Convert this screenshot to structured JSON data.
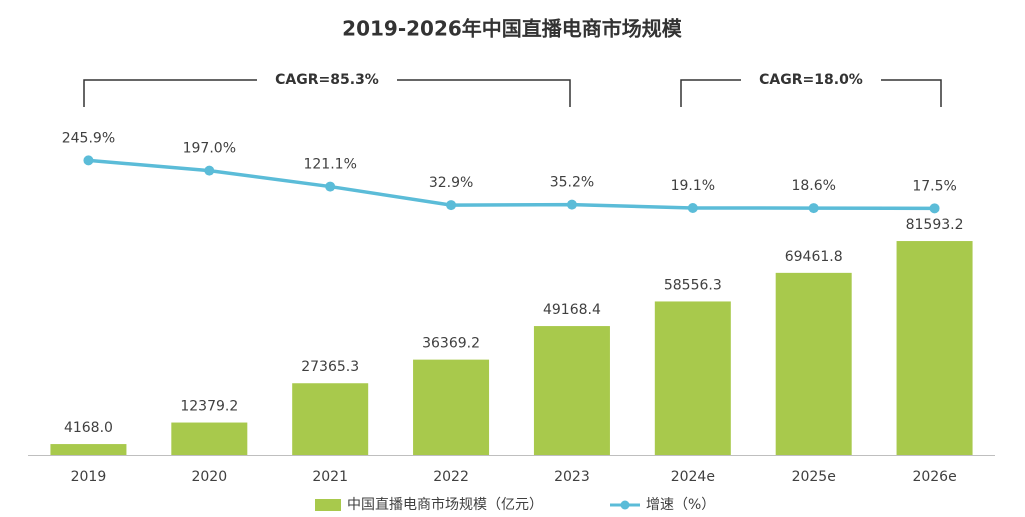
{
  "chart_data": {
    "type": "combo",
    "title": "2019-2026年中国直播电商市场规模",
    "categories": [
      "2019",
      "2020",
      "2021",
      "2022",
      "2023",
      "2024e",
      "2025e",
      "2026e"
    ],
    "series": [
      {
        "name": "中国直播电商市场规模（亿元）",
        "type": "bar",
        "color": "#a8c94c",
        "values": [
          4168.0,
          12379.2,
          27365.3,
          36369.2,
          49168.4,
          58556.3,
          69461.8,
          81593.2
        ],
        "value_labels": [
          "4168.0",
          "12379.2",
          "27365.3",
          "36369.2",
          "49168.4",
          "58556.3",
          "69461.8",
          "81593.2"
        ]
      },
      {
        "name": "增速（%）",
        "type": "line",
        "axis": "y2",
        "color": "#5bbcd8",
        "values": [
          245.9,
          197.0,
          121.1,
          32.9,
          35.2,
          19.1,
          18.6,
          17.5
        ],
        "value_labels": [
          "245.9%",
          "197.0%",
          "121.1%",
          "32.9%",
          "35.2%",
          "19.1%",
          "18.6%",
          "17.5%"
        ]
      }
    ],
    "ylim": [
      0,
      90000
    ],
    "y2lim": [
      0,
      300
    ],
    "annotations": [
      {
        "text": "CAGR=85.3%"
      },
      {
        "text": "CAGR=18.0%"
      }
    ],
    "legend": "bottom"
  }
}
